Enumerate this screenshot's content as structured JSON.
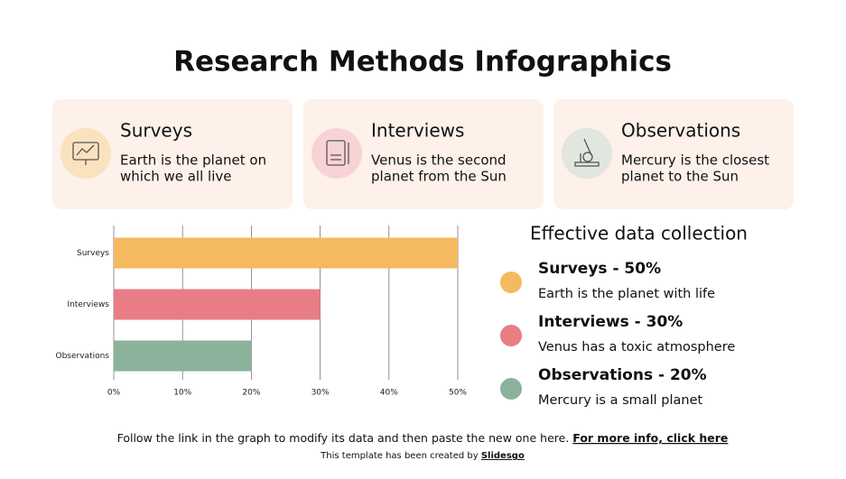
{
  "title": "Research Methods Infographics",
  "cards": [
    {
      "heading": "Surveys",
      "lines": [
        "Earth is the planet on",
        "which we all live"
      ]
    },
    {
      "heading": "Interviews",
      "lines": [
        "Venus is the second",
        "planet from the Sun"
      ]
    },
    {
      "heading": "Observations",
      "lines": [
        "Mercury is the closest",
        "planet to the Sun"
      ]
    }
  ],
  "chart_data": {
    "type": "hbar",
    "categories": [
      "Surveys",
      "Interviews",
      "Observations"
    ],
    "values": [
      50,
      30,
      20
    ],
    "colors": [
      "#f5b95f",
      "#e87d86",
      "#8bb39b"
    ],
    "xlim": [
      0,
      50
    ],
    "xticks": [
      {
        "value": 0,
        "label": "0%"
      },
      {
        "value": 10,
        "label": "10%"
      },
      {
        "value": 20,
        "label": "20%"
      },
      {
        "value": 30,
        "label": "30%"
      },
      {
        "value": 40,
        "label": "40%"
      },
      {
        "value": 50,
        "label": "50%"
      }
    ],
    "grid": true
  },
  "legend": {
    "title": "Effective data collection",
    "items": [
      {
        "title": "Surveys - 50%",
        "text": "Earth is the planet with life"
      },
      {
        "title": "Interviews - 30%",
        "text": "Venus has a toxic atmosphere"
      },
      {
        "title": "Observations - 20%",
        "text": "Mercury is a small planet"
      }
    ]
  },
  "footer": {
    "text": "Follow the link in the graph to modify its data and then paste the new one here.",
    "link": "For more info, click here",
    "credit": "This template has been created by",
    "credit_link": "Slidesgo"
  }
}
